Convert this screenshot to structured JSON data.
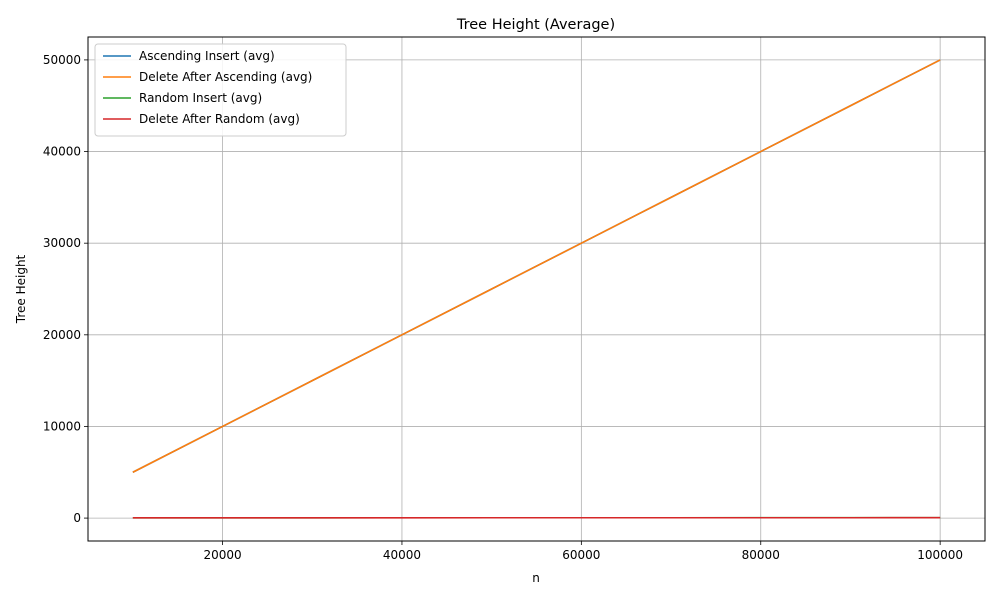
{
  "chart_data": {
    "type": "line",
    "title": "Tree Height (Average)",
    "xlabel": "n",
    "ylabel": "Tree Height",
    "xlim": [
      5000,
      105000
    ],
    "ylim": [
      -2500,
      52500
    ],
    "xticks": [
      20000,
      40000,
      60000,
      80000,
      100000
    ],
    "yticks": [
      0,
      10000,
      20000,
      30000,
      40000,
      50000
    ],
    "xtick_labels": [
      "20000",
      "40000",
      "60000",
      "80000",
      "100000"
    ],
    "ytick_labels": [
      "0",
      "10000",
      "20000",
      "30000",
      "40000",
      "50000"
    ],
    "grid": true,
    "legend_position": "upper-left",
    "x": [
      10000,
      20000,
      30000,
      40000,
      50000,
      60000,
      70000,
      80000,
      90000,
      100000
    ],
    "series": [
      {
        "name": "Ascending Insert (avg)",
        "color": "#1f77b4",
        "values": [
          5000,
          10000,
          15000,
          20000,
          25000,
          30000,
          35000,
          40000,
          45000,
          50000
        ]
      },
      {
        "name": "Delete After Ascending (avg)",
        "color": "#ff7f0e",
        "values": [
          5000,
          10000,
          15000,
          20000,
          25000,
          30000,
          35000,
          40000,
          45000,
          50000
        ]
      },
      {
        "name": "Random Insert (avg)",
        "color": "#2ca02c",
        "values": [
          30,
          33,
          35,
          36,
          37,
          38,
          38,
          39,
          39,
          40
        ]
      },
      {
        "name": "Delete After Random (avg)",
        "color": "#d62728",
        "values": [
          29,
          32,
          34,
          35,
          36,
          37,
          37,
          38,
          38,
          39
        ]
      }
    ]
  }
}
